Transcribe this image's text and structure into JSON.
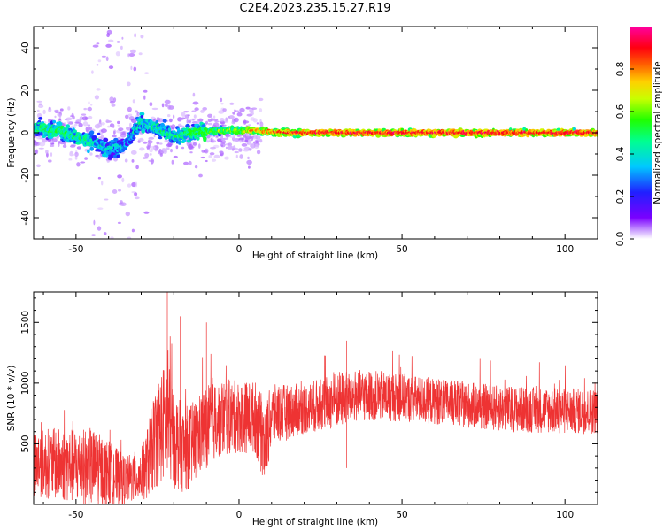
{
  "title": "C2E4.2023.235.15.27.R19",
  "chart_data": [
    {
      "type": "heatmap",
      "xlabel": "Height of straight line (km)",
      "ylabel": "Frequency (Hz)",
      "xlim": [
        -63,
        110
      ],
      "ylim": [
        -50,
        50
      ],
      "xticks": [
        -50,
        0,
        50,
        100
      ],
      "yticks": [
        -40,
        -20,
        0,
        20,
        40
      ],
      "colorbar": {
        "label": "Normalized spectral amplitude",
        "range": [
          0,
          1
        ],
        "ticks": [
          "0.0",
          "0.2",
          "0.4",
          "0.6",
          "0.8"
        ],
        "colormap": "rainbow (purple-blue-cyan-green-yellow-red-magenta)"
      },
      "description_points": [
        {
          "x": -60,
          "y": 2,
          "amp": 0.45
        },
        {
          "x": -55,
          "y": 1,
          "amp": 0.5
        },
        {
          "x": -50,
          "y": -2,
          "amp": 0.45
        },
        {
          "x": -45,
          "y": -4,
          "amp": 0.4
        },
        {
          "x": -40,
          "y": -8,
          "amp": 0.35
        },
        {
          "x": -35,
          "y": -6,
          "amp": 0.3
        },
        {
          "x": -30,
          "y": 5,
          "amp": 0.4
        },
        {
          "x": -25,
          "y": 2,
          "amp": 0.45
        },
        {
          "x": -20,
          "y": -2,
          "amp": 0.4
        },
        {
          "x": -15,
          "y": 0,
          "amp": 0.5
        },
        {
          "x": -5,
          "y": 1,
          "amp": 0.6
        },
        {
          "x": 5,
          "y": 1,
          "amp": 0.75
        },
        {
          "x": 15,
          "y": 0,
          "amp": 0.85
        },
        {
          "x": 30,
          "y": 0,
          "amp": 0.9
        },
        {
          "x": 45,
          "y": 0,
          "amp": 0.9
        },
        {
          "x": 60,
          "y": 0,
          "amp": 0.9
        },
        {
          "x": 75,
          "y": 0,
          "amp": 0.9
        },
        {
          "x": 90,
          "y": 0,
          "amp": 0.9
        },
        {
          "x": 105,
          "y": 0,
          "amp": 0.9
        }
      ]
    },
    {
      "type": "line",
      "xlabel": "Height of straight line (km)",
      "ylabel": "SNR (10 * v/v)",
      "xlim": [
        -63,
        110
      ],
      "ylim": [
        0,
        1750
      ],
      "xticks": [
        -50,
        0,
        50,
        100
      ],
      "yticks": [
        500,
        1000,
        1500
      ],
      "series": [
        {
          "color": "#ee3333",
          "envelope_x": [
            -63,
            -55,
            -45,
            -40,
            -35,
            -30,
            -28,
            -25,
            -22,
            -20,
            -17,
            -14,
            -10,
            -5,
            0,
            5,
            8,
            10,
            15,
            20,
            25,
            30,
            35,
            40,
            50,
            60,
            70,
            80,
            90,
            100,
            110
          ],
          "envelope_mean": [
            350,
            330,
            300,
            260,
            200,
            240,
            350,
            600,
            700,
            550,
            450,
            500,
            650,
            720,
            720,
            720,
            500,
            740,
            760,
            790,
            820,
            860,
            890,
            900,
            880,
            850,
            820,
            790,
            780,
            770,
            770
          ],
          "envelope_amp": [
            280,
            300,
            330,
            270,
            200,
            220,
            300,
            450,
            500,
            420,
            350,
            350,
            330,
            320,
            300,
            300,
            350,
            250,
            230,
            210,
            220,
            240,
            220,
            210,
            200,
            190,
            190,
            190,
            190,
            190,
            190
          ]
        }
      ],
      "peak_annotations": [
        {
          "x": -22,
          "y": 1750
        },
        {
          "x": -18,
          "y": 1550
        },
        {
          "x": -10,
          "y": 1500
        },
        {
          "x": 33,
          "y": 1350
        }
      ]
    }
  ]
}
